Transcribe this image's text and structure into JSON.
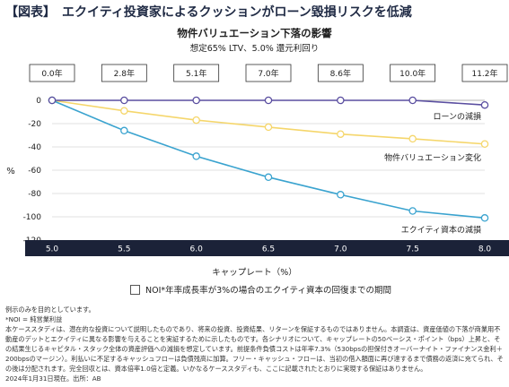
{
  "header": {
    "title": "【図表】　エクイティ投資家によるクッションがローン毀損リスクを低減"
  },
  "chart_data": {
    "type": "line",
    "title": "物件バリュエーション下落の影響",
    "subtitle": "想定65% LTV、5.0% 還元利回り",
    "xlabel": "キャップレート（%）",
    "ylabel": "%",
    "x": [
      5.0,
      5.5,
      6.0,
      6.5,
      7.0,
      7.5,
      8.0
    ],
    "x_tick_labels": [
      "5.0",
      "5.5",
      "6.0",
      "6.5",
      "7.0",
      "7.5",
      "8.0"
    ],
    "ylim": [
      -120,
      0
    ],
    "y_ticks": [
      0,
      -20,
      -40,
      -60,
      -80,
      -100,
      -120
    ],
    "grid": true,
    "series": [
      {
        "name": "ローンの減損",
        "color": "#5a4ea0",
        "values": [
          0,
          0,
          0,
          0,
          0,
          0,
          -4
        ]
      },
      {
        "name": "物件バリュエーション変化",
        "color": "#f5d66b",
        "values": [
          0,
          -9,
          -17,
          -23,
          -29,
          -33,
          -37.5
        ]
      },
      {
        "name": "エクイティ資本の減損",
        "color": "#3aa3cf",
        "values": [
          0,
          -26,
          -48,
          -66,
          -81,
          -95,
          -101
        ]
      }
    ],
    "recovery_boxes": {
      "legend_label": "NOI*年率成長率が3%の場合のエクイティ資本の回復までの期間",
      "labels": [
        "0.0年",
        "2.8年",
        "5.1年",
        "7.0年",
        "8.6年",
        "10.0年",
        "11.2年"
      ]
    }
  },
  "footnotes": [
    "例示のみを目的としています。",
    "*NOI = 純営業利益",
    "本ケーススタディは、潜在的な投資について説明したものであり、将来の投資、投資結果、リターンを保証するものではありません。本調査は、資産価値の下落が商業用不動産のデットとエクイティに異なる影響を与えることを実証するために示したものです。各シナリオについて、キャップレートの50ベーシス・ポイント（bps）上昇と、その結果生じるキャピタル・スタック全体の資産評価への減損を想定しています。前提条件負債コストは年率7.3%（530bpsの担保付きオーバーナイト・ファイナンス金利＋200bpsのマージン）。利払いに不足するキャッシュフローは負債残高に加算。フリー・キャッシュ・フローは、当初の借入額面に再び達するまで債務の返済に充てられ、その後は分配されます。完全回収とは、資本倍率1.0倍と定義。いかなるケーススタディも、ここに記載されたとおりに実現する保証はありません。",
    "2024年1月31日現在。出所：AB"
  ]
}
